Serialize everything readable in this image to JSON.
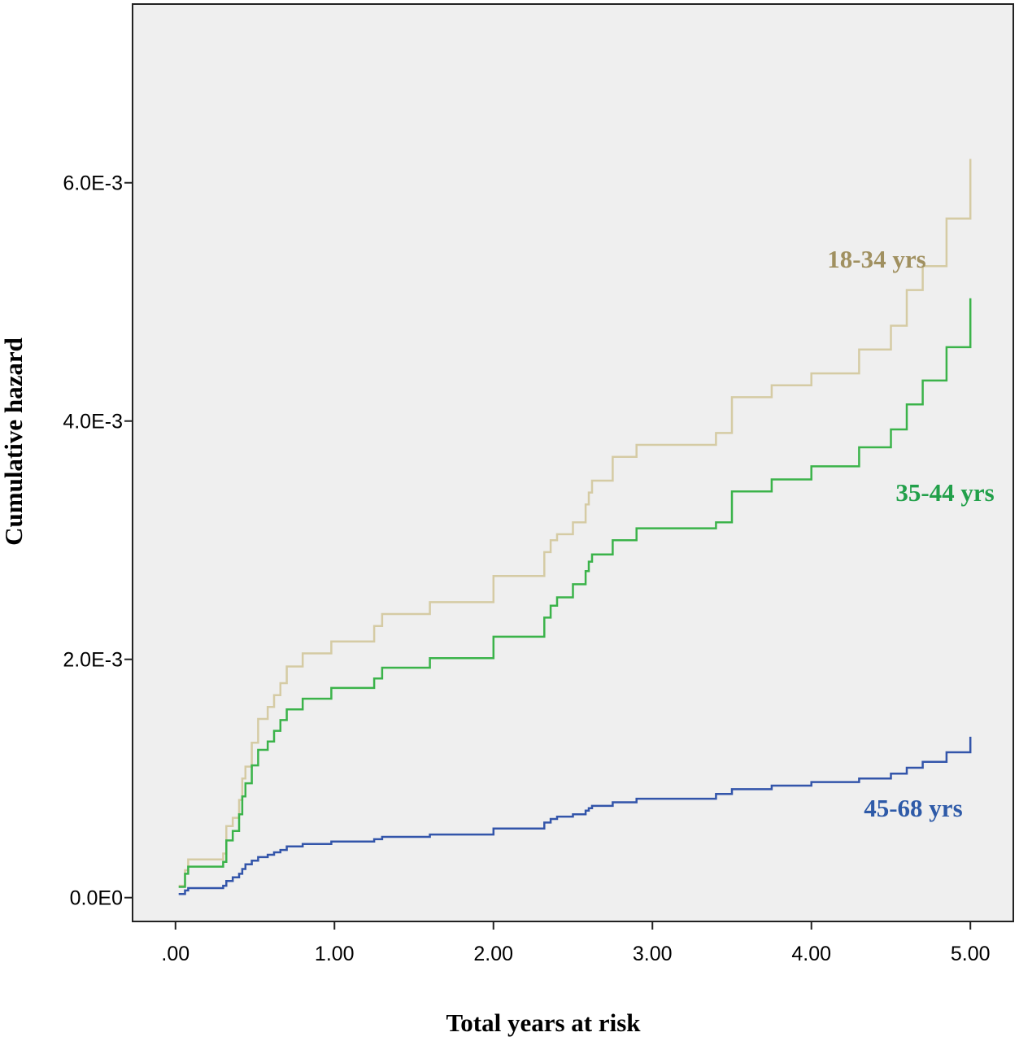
{
  "chart_data": {
    "type": "line",
    "step": true,
    "title": "",
    "xlabel": "Total years at risk",
    "ylabel": "Cumulative hazard",
    "xlim": [
      -0.27,
      5.27
    ],
    "ylim": [
      -0.0002,
      0.0075
    ],
    "x_ticks": [
      0,
      1,
      2,
      3,
      4,
      5
    ],
    "x_tick_labels": [
      ".00",
      "1.00",
      "2.00",
      "3.00",
      "4.00",
      "5.00"
    ],
    "y_ticks": [
      0,
      0.002,
      0.004,
      0.006
    ],
    "y_tick_labels": [
      "0.0E0",
      "2.0E-3",
      "4.0E-3",
      "6.0E-3"
    ],
    "grid": false,
    "background": "#efefef",
    "series": [
      {
        "name": "18-34 yrs",
        "color": "#d5cba4",
        "label_color": "#a09060",
        "label_at": [
          4.1,
          0.00529
        ],
        "x": [
          0.02,
          0.06,
          0.08,
          0.3,
          0.32,
          0.36,
          0.4,
          0.42,
          0.44,
          0.48,
          0.52,
          0.58,
          0.62,
          0.66,
          0.7,
          0.8,
          0.98,
          1.25,
          1.3,
          1.6,
          2.0,
          2.32,
          2.36,
          2.4,
          2.5,
          2.58,
          2.6,
          2.62,
          2.75,
          2.9,
          3.4,
          3.5,
          3.75,
          4.0,
          4.3,
          4.5,
          4.6,
          4.7,
          4.85,
          5.0
        ],
        "y": [
          0.0001,
          0.00023,
          0.00032,
          0.00037,
          0.0006,
          0.00067,
          0.00082,
          0.001,
          0.0011,
          0.0013,
          0.0015,
          0.0016,
          0.0017,
          0.0018,
          0.00194,
          0.00205,
          0.00215,
          0.00228,
          0.00238,
          0.00248,
          0.0027,
          0.0029,
          0.003,
          0.00305,
          0.00315,
          0.0033,
          0.0034,
          0.0035,
          0.0037,
          0.0038,
          0.0039,
          0.0042,
          0.0043,
          0.0044,
          0.0046,
          0.0048,
          0.0051,
          0.0053,
          0.0057,
          0.0062
        ]
      },
      {
        "name": "35-44 yrs",
        "color": "#3bb34a",
        "label_color": "#22a04a",
        "label_at": [
          4.53,
          0.00333
        ],
        "x": [
          0.02,
          0.06,
          0.08,
          0.3,
          0.32,
          0.36,
          0.4,
          0.42,
          0.44,
          0.48,
          0.52,
          0.58,
          0.62,
          0.66,
          0.7,
          0.8,
          0.98,
          1.25,
          1.3,
          1.6,
          2.0,
          2.32,
          2.36,
          2.4,
          2.5,
          2.58,
          2.6,
          2.62,
          2.75,
          2.9,
          3.4,
          3.5,
          3.75,
          4.0,
          4.3,
          4.5,
          4.6,
          4.7,
          4.85,
          5.0
        ],
        "y": [
          9e-05,
          0.0002,
          0.00026,
          0.0003,
          0.00048,
          0.00056,
          0.0007,
          0.00085,
          0.00096,
          0.00111,
          0.00124,
          0.00131,
          0.0014,
          0.00149,
          0.00158,
          0.00167,
          0.00176,
          0.00184,
          0.00193,
          0.00201,
          0.00219,
          0.00235,
          0.00245,
          0.00252,
          0.00263,
          0.00274,
          0.00282,
          0.00288,
          0.003,
          0.0031,
          0.00315,
          0.00341,
          0.00351,
          0.00362,
          0.00378,
          0.00393,
          0.00414,
          0.00434,
          0.00462,
          0.00503
        ]
      },
      {
        "name": "45-68 yrs",
        "color": "#3355aa",
        "label_color": "#2e5aa8",
        "label_at": [
          4.33,
          0.00068
        ],
        "x": [
          0.02,
          0.06,
          0.08,
          0.3,
          0.32,
          0.36,
          0.4,
          0.42,
          0.44,
          0.48,
          0.52,
          0.58,
          0.62,
          0.66,
          0.7,
          0.8,
          0.98,
          1.25,
          1.3,
          1.6,
          2.0,
          2.32,
          2.36,
          2.4,
          2.5,
          2.58,
          2.6,
          2.62,
          2.75,
          2.9,
          3.4,
          3.5,
          3.75,
          4.0,
          4.3,
          4.5,
          4.6,
          4.7,
          4.85,
          5.0
        ],
        "y": [
          3e-05,
          6e-05,
          8e-05,
          0.0001,
          0.00014,
          0.00017,
          0.0002,
          0.00024,
          0.00028,
          0.00031,
          0.00034,
          0.00036,
          0.00038,
          0.0004,
          0.00043,
          0.00045,
          0.00047,
          0.00049,
          0.00051,
          0.00053,
          0.00058,
          0.00063,
          0.00066,
          0.00068,
          0.0007,
          0.00073,
          0.00075,
          0.00077,
          0.0008,
          0.00083,
          0.00087,
          0.00091,
          0.00094,
          0.00097,
          0.001,
          0.00104,
          0.00109,
          0.00114,
          0.00122,
          0.00135
        ]
      }
    ]
  }
}
